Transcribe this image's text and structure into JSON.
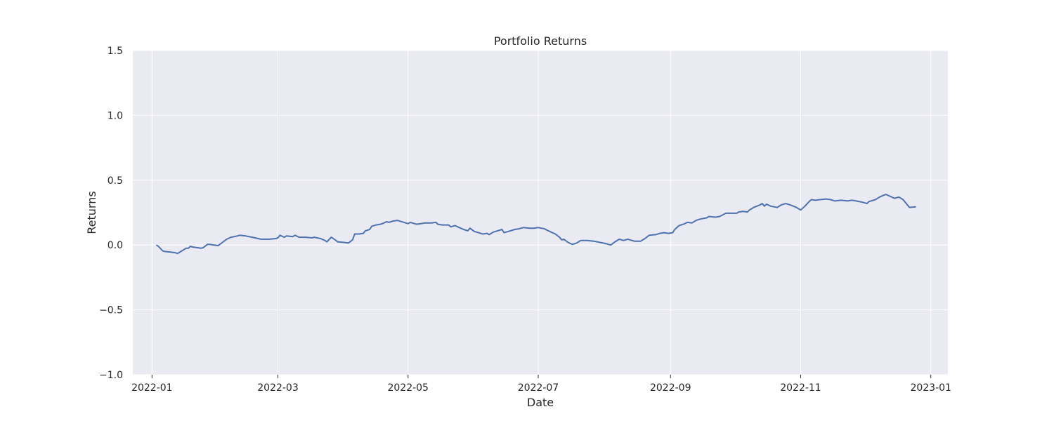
{
  "chart_data": {
    "type": "line",
    "title": "Portfolio Returns",
    "xlabel": "Date",
    "ylabel": "Returns",
    "xlim": [
      "2021-12-23",
      "2023-01-09"
    ],
    "ylim": [
      -1.0,
      1.5
    ],
    "grid": true,
    "x_ticks": [
      "2022-01",
      "2022-03",
      "2022-05",
      "2022-07",
      "2022-09",
      "2022-11",
      "2023-01"
    ],
    "y_ticks": [
      "−1.0",
      "−0.5",
      "0.0",
      "0.5",
      "1.0",
      "1.5"
    ],
    "y_tick_values": [
      -1.0,
      -0.5,
      0.0,
      0.5,
      1.0,
      1.5
    ],
    "colors": {
      "background": "#eaeaf2",
      "grid": "#ffffff",
      "series": "#4c72b0",
      "text": "#262626"
    },
    "series": [
      {
        "points": [
          [
            "2022-01-03",
            0.0
          ],
          [
            "2022-01-04",
            -0.01
          ],
          [
            "2022-01-06",
            -0.045
          ],
          [
            "2022-01-07",
            -0.05
          ],
          [
            "2022-01-10",
            -0.055
          ],
          [
            "2022-01-12",
            -0.06
          ],
          [
            "2022-01-13",
            -0.065
          ],
          [
            "2022-01-14",
            -0.055
          ],
          [
            "2022-01-17",
            -0.025
          ],
          [
            "2022-01-18",
            -0.025
          ],
          [
            "2022-01-19",
            -0.01
          ],
          [
            "2022-01-20",
            -0.015
          ],
          [
            "2022-01-24",
            -0.025
          ],
          [
            "2022-01-25",
            -0.02
          ],
          [
            "2022-01-27",
            0.005
          ],
          [
            "2022-01-28",
            0.005
          ],
          [
            "2022-02-01",
            -0.005
          ],
          [
            "2022-02-03",
            0.02
          ],
          [
            "2022-02-05",
            0.045
          ],
          [
            "2022-02-07",
            0.06
          ],
          [
            "2022-02-10",
            0.07
          ],
          [
            "2022-02-11",
            0.075
          ],
          [
            "2022-02-14",
            0.07
          ],
          [
            "2022-02-17",
            0.06
          ],
          [
            "2022-02-21",
            0.045
          ],
          [
            "2022-02-25",
            0.045
          ],
          [
            "2022-02-28",
            0.05
          ],
          [
            "2022-03-01",
            0.055
          ],
          [
            "2022-03-02",
            0.075
          ],
          [
            "2022-03-04",
            0.06
          ],
          [
            "2022-03-05",
            0.07
          ],
          [
            "2022-03-08",
            0.065
          ],
          [
            "2022-03-09",
            0.075
          ],
          [
            "2022-03-11",
            0.06
          ],
          [
            "2022-03-14",
            0.06
          ],
          [
            "2022-03-17",
            0.055
          ],
          [
            "2022-03-18",
            0.06
          ],
          [
            "2022-03-21",
            0.05
          ],
          [
            "2022-03-23",
            0.035
          ],
          [
            "2022-03-24",
            0.025
          ],
          [
            "2022-03-26",
            0.06
          ],
          [
            "2022-03-27",
            0.05
          ],
          [
            "2022-03-29",
            0.025
          ],
          [
            "2022-04-01",
            0.02
          ],
          [
            "2022-04-03",
            0.015
          ],
          [
            "2022-04-05",
            0.04
          ],
          [
            "2022-04-06",
            0.085
          ],
          [
            "2022-04-08",
            0.085
          ],
          [
            "2022-04-10",
            0.09
          ],
          [
            "2022-04-11",
            0.11
          ],
          [
            "2022-04-13",
            0.12
          ],
          [
            "2022-04-14",
            0.145
          ],
          [
            "2022-04-16",
            0.155
          ],
          [
            "2022-04-18",
            0.16
          ],
          [
            "2022-04-19",
            0.165
          ],
          [
            "2022-04-21",
            0.18
          ],
          [
            "2022-04-22",
            0.175
          ],
          [
            "2022-04-24",
            0.185
          ],
          [
            "2022-04-26",
            0.19
          ],
          [
            "2022-04-28",
            0.18
          ],
          [
            "2022-05-01",
            0.165
          ],
          [
            "2022-05-02",
            0.175
          ],
          [
            "2022-05-05",
            0.16
          ],
          [
            "2022-05-07",
            0.165
          ],
          [
            "2022-05-09",
            0.17
          ],
          [
            "2022-05-12",
            0.17
          ],
          [
            "2022-05-14",
            0.175
          ],
          [
            "2022-05-15",
            0.16
          ],
          [
            "2022-05-17",
            0.155
          ],
          [
            "2022-05-20",
            0.155
          ],
          [
            "2022-05-21",
            0.14
          ],
          [
            "2022-05-23",
            0.15
          ],
          [
            "2022-05-25",
            0.135
          ],
          [
            "2022-05-27",
            0.12
          ],
          [
            "2022-05-29",
            0.11
          ],
          [
            "2022-05-30",
            0.13
          ],
          [
            "2022-06-01",
            0.105
          ],
          [
            "2022-06-03",
            0.095
          ],
          [
            "2022-06-05",
            0.085
          ],
          [
            "2022-06-07",
            0.09
          ],
          [
            "2022-06-08",
            0.08
          ],
          [
            "2022-06-10",
            0.1
          ],
          [
            "2022-06-12",
            0.11
          ],
          [
            "2022-06-14",
            0.12
          ],
          [
            "2022-06-15",
            0.095
          ],
          [
            "2022-06-18",
            0.11
          ],
          [
            "2022-06-20",
            0.12
          ],
          [
            "2022-06-22",
            0.125
          ],
          [
            "2022-06-24",
            0.135
          ],
          [
            "2022-06-27",
            0.13
          ],
          [
            "2022-06-29",
            0.13
          ],
          [
            "2022-07-01",
            0.135
          ],
          [
            "2022-07-04",
            0.125
          ],
          [
            "2022-07-05",
            0.115
          ],
          [
            "2022-07-07",
            0.1
          ],
          [
            "2022-07-09",
            0.085
          ],
          [
            "2022-07-11",
            0.06
          ],
          [
            "2022-07-12",
            0.04
          ],
          [
            "2022-07-13",
            0.045
          ],
          [
            "2022-07-15",
            0.02
          ],
          [
            "2022-07-17",
            0.005
          ],
          [
            "2022-07-19",
            0.015
          ],
          [
            "2022-07-21",
            0.035
          ],
          [
            "2022-07-24",
            0.035
          ],
          [
            "2022-07-27",
            0.03
          ],
          [
            "2022-07-30",
            0.02
          ],
          [
            "2022-08-02",
            0.01
          ],
          [
            "2022-08-04",
            0.0
          ],
          [
            "2022-08-06",
            0.025
          ],
          [
            "2022-08-08",
            0.045
          ],
          [
            "2022-08-10",
            0.035
          ],
          [
            "2022-08-12",
            0.045
          ],
          [
            "2022-08-15",
            0.03
          ],
          [
            "2022-08-18",
            0.03
          ],
          [
            "2022-08-20",
            0.05
          ],
          [
            "2022-08-22",
            0.075
          ],
          [
            "2022-08-25",
            0.08
          ],
          [
            "2022-08-27",
            0.09
          ],
          [
            "2022-08-29",
            0.095
          ],
          [
            "2022-08-31",
            0.09
          ],
          [
            "2022-09-02",
            0.095
          ],
          [
            "2022-09-03",
            0.12
          ],
          [
            "2022-09-05",
            0.15
          ],
          [
            "2022-09-07",
            0.16
          ],
          [
            "2022-09-09",
            0.175
          ],
          [
            "2022-09-11",
            0.17
          ],
          [
            "2022-09-13",
            0.19
          ],
          [
            "2022-09-15",
            0.2
          ],
          [
            "2022-09-18",
            0.21
          ],
          [
            "2022-09-19",
            0.22
          ],
          [
            "2022-09-22",
            0.215
          ],
          [
            "2022-09-24",
            0.22
          ],
          [
            "2022-09-27",
            0.245
          ],
          [
            "2022-09-30",
            0.245
          ],
          [
            "2022-10-02",
            0.245
          ],
          [
            "2022-10-03",
            0.255
          ],
          [
            "2022-10-05",
            0.26
          ],
          [
            "2022-10-07",
            0.255
          ],
          [
            "2022-10-08",
            0.27
          ],
          [
            "2022-10-10",
            0.29
          ],
          [
            "2022-10-13",
            0.31
          ],
          [
            "2022-10-14",
            0.32
          ],
          [
            "2022-10-15",
            0.3
          ],
          [
            "2022-10-16",
            0.315
          ],
          [
            "2022-10-18",
            0.3
          ],
          [
            "2022-10-21",
            0.29
          ],
          [
            "2022-10-23",
            0.31
          ],
          [
            "2022-10-25",
            0.32
          ],
          [
            "2022-10-27",
            0.31
          ],
          [
            "2022-10-30",
            0.29
          ],
          [
            "2022-11-01",
            0.27
          ],
          [
            "2022-11-03",
            0.3
          ],
          [
            "2022-11-05",
            0.335
          ],
          [
            "2022-11-06",
            0.35
          ],
          [
            "2022-11-08",
            0.345
          ],
          [
            "2022-11-10",
            0.35
          ],
          [
            "2022-11-13",
            0.355
          ],
          [
            "2022-11-15",
            0.35
          ],
          [
            "2022-11-17",
            0.34
          ],
          [
            "2022-11-20",
            0.345
          ],
          [
            "2022-11-23",
            0.34
          ],
          [
            "2022-11-25",
            0.345
          ],
          [
            "2022-11-27",
            0.34
          ],
          [
            "2022-11-30",
            0.33
          ],
          [
            "2022-12-02",
            0.32
          ],
          [
            "2022-12-03",
            0.335
          ],
          [
            "2022-12-06",
            0.35
          ],
          [
            "2022-12-08",
            0.37
          ],
          [
            "2022-12-10",
            0.385
          ],
          [
            "2022-12-11",
            0.39
          ],
          [
            "2022-12-13",
            0.375
          ],
          [
            "2022-12-15",
            0.36
          ],
          [
            "2022-12-17",
            0.37
          ],
          [
            "2022-12-19",
            0.35
          ],
          [
            "2022-12-22",
            0.29
          ],
          [
            "2022-12-25",
            0.295
          ]
        ]
      }
    ]
  }
}
